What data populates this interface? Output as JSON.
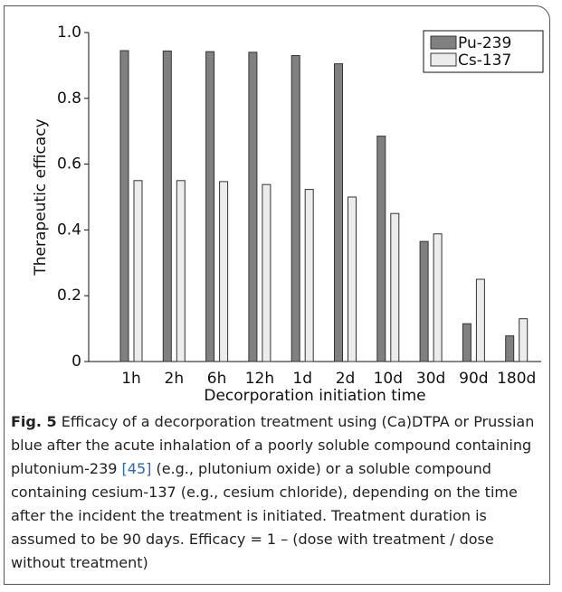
{
  "chart_data": {
    "type": "bar",
    "categories": [
      "1h",
      "2h",
      "6h",
      "12h",
      "1d",
      "2d",
      "10d",
      "30d",
      "90d",
      "180d"
    ],
    "series": [
      {
        "name": "Pu-239",
        "color": "#808080",
        "values": [
          0.945,
          0.944,
          0.942,
          0.94,
          0.93,
          0.905,
          0.685,
          0.365,
          0.115,
          0.078
        ]
      },
      {
        "name": "Cs-137",
        "color": "#ececec",
        "values": [
          0.55,
          0.55,
          0.547,
          0.538,
          0.523,
          0.5,
          0.45,
          0.388,
          0.25,
          0.13
        ]
      }
    ],
    "ylim": [
      0,
      1
    ],
    "yticks": [
      0,
      0.2,
      0.4,
      0.6,
      0.8,
      {
        "value": 1,
        "label": "1.0"
      }
    ],
    "y_label": "Therapeutic efficacy",
    "x_label": "Decorporation initiation time",
    "legend": "top-right",
    "grid": false,
    "caption_label": "Fig. 5",
    "caption": [
      " Efficacy of a decorporation treatment using (Ca)DTPA or Prussian blue after the acute inhalation of a poorly soluble compound containing plutonium-239 ",
      "[45]",
      " (e.g., plutonium oxide) or a soluble compound containing cesium-137 (e.g., cesium chloride), depending on the time after the incident the treatment is initiated. Treatment duration is assumed to be 90 days. Efficacy = 1 – (dose with treatment / dose without treatment)"
    ]
  }
}
